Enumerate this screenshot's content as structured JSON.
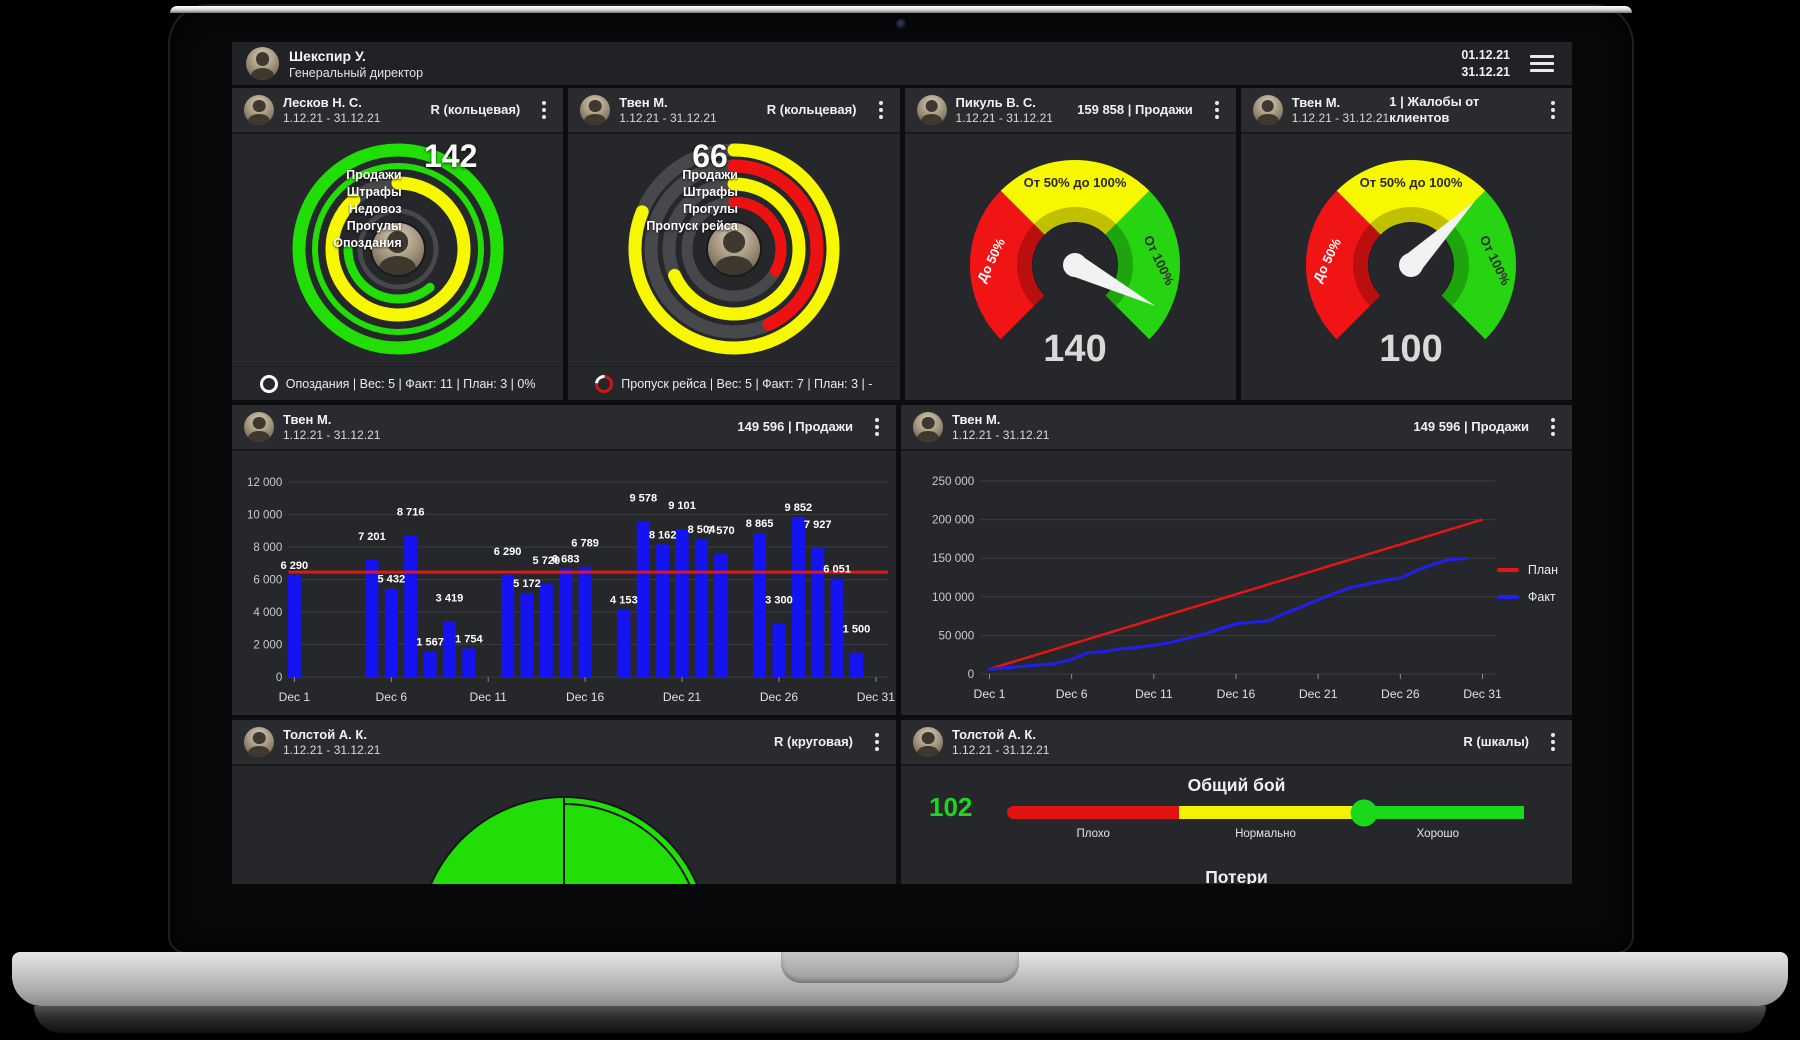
{
  "colors": {
    "green": "#21DF06",
    "yellow": "#F7F700",
    "red": "#EE1111",
    "gauge_red": "#F01414",
    "gauge_yellow": "#F7F700",
    "gauge_green": "#27D411",
    "bar_blue": "#1414F2",
    "plan_red": "#E11616",
    "fact_blue": "#2020EE",
    "ring_track": "#47484C",
    "scale_red": "#E11212",
    "scale_yellow": "#F3F300",
    "scale_green": "#1AD91A",
    "value_green": "#1FD61F"
  },
  "header": {
    "name": "Шекспир У.",
    "role": "Генеральный директор",
    "date_from": "01.12.21",
    "date_to": "31.12.21"
  },
  "cards": {
    "ring1": {
      "name": "Лесков Н. С.",
      "period": "1.12.21 - 31.12.21",
      "mode": "R (кольцевая)",
      "value": "142",
      "legend": [
        "Продажи",
        "Штрафы",
        "Недовоз",
        "Прогулы",
        "Опоздания"
      ],
      "footer": "Опоздания | Вес: 5 | Факт: 11 | План: 3 | 0%",
      "rings": [
        {
          "color": "#21DF06",
          "r": 99,
          "w": 13,
          "start": 0,
          "sweep": 360
        },
        {
          "color": "#21DF06",
          "r": 83,
          "w": 6,
          "start": 0,
          "sweep": 360
        },
        {
          "color": "#F7F700",
          "r": 66,
          "w": 13,
          "start": 0,
          "sweep": 318,
          "track": "#47484C"
        },
        {
          "color": "#21DF06",
          "r": 50,
          "w": 9,
          "start": 140,
          "sweep": 130
        },
        {
          "color": "#47484C",
          "r": 38,
          "w": 5,
          "start": 0,
          "sweep": 0,
          "track": "#47484C"
        }
      ]
    },
    "ring2": {
      "name": "Твен М.",
      "period": "1.12.21 - 31.12.21",
      "mode": "R (кольцевая)",
      "value": "66",
      "legend": [
        "Продажи",
        "Штрафы",
        "Прогулы",
        "Пропуск рейса"
      ],
      "footer": "Пропуск рейса | Вес: 5 | Факт: 7 | План: 3 | -",
      "rings": [
        {
          "color": "#F7F700",
          "r": 99,
          "w": 13,
          "start": 0,
          "sweep": 292,
          "track": "#47484C"
        },
        {
          "color": "#EE1111",
          "r": 83,
          "w": 13,
          "start": 0,
          "sweep": 155,
          "track": "#47484C"
        },
        {
          "color": "#F7F700",
          "r": 65,
          "w": 13,
          "start": 0,
          "sweep": 246,
          "track": "#47484C"
        },
        {
          "color": "#EE1111",
          "r": 47,
          "w": 11,
          "start": 0,
          "sweep": 118,
          "track": "#47484C"
        }
      ]
    },
    "gauge1": {
      "name": "Пикуль В. С.",
      "period": "1.12.21 - 31.12.21",
      "metric": "159 858 | Продажи",
      "value": 140,
      "display": "140",
      "label_low": "До 50%",
      "label_mid": "От 50% до 100%",
      "label_high": "От 100%"
    },
    "gauge2": {
      "name": "Твен М.",
      "period": "1.12.21 - 31.12.21",
      "metric": "1 | Жалобы от клиентов",
      "value": 100,
      "display": "100",
      "label_low": "До 50%",
      "label_mid": "От 50% до 100%",
      "label_high": "От 100%"
    },
    "bar": {
      "name": "Твен М.",
      "period": "1.12.21 - 31.12.21",
      "metric": "149 596 | Продажи"
    },
    "line": {
      "name": "Твен М.",
      "period": "1.12.21 - 31.12.21",
      "metric": "149 596 | Продажи",
      "legend": [
        "План",
        "Факт"
      ]
    },
    "pie": {
      "name": "Толстой А. К.",
      "period": "1.12.21 - 31.12.21",
      "mode": "R (круговая)"
    },
    "scale": {
      "name": "Толстой А. К.",
      "period": "1.12.21 - 31.12.21",
      "mode": "R (шкалы)",
      "scale1": {
        "title": "Общий бой",
        "value": "102",
        "labels": [
          "Плохо",
          "Нормально",
          "Хорошо"
        ],
        "knob_pct": 69
      },
      "scale2": {
        "title": "Потери"
      }
    }
  },
  "chart_data": [
    {
      "type": "bar",
      "ylim": [
        0,
        12000
      ],
      "ytick_step": 2000,
      "plan_value": 6452,
      "grid": true,
      "xticks": [
        {
          "d": 1,
          "label": "Dec 1"
        },
        {
          "d": 6,
          "label": "Dec 6"
        },
        {
          "d": 11,
          "label": "Dec 11"
        },
        {
          "d": 16,
          "label": "Dec 16"
        },
        {
          "d": 21,
          "label": "Dec 21"
        },
        {
          "d": 26,
          "label": "Dec 26"
        },
        {
          "d": 31,
          "label": "Dec 31"
        }
      ],
      "points": [
        {
          "d": 1,
          "v": 6290
        },
        {
          "d": 5,
          "v": 7201
        },
        {
          "d": 6,
          "v": 5432
        },
        {
          "d": 7,
          "v": 8716
        },
        {
          "d": 8,
          "v": 1567
        },
        {
          "d": 9,
          "v": 3419
        },
        {
          "d": 10,
          "v": 1754
        },
        {
          "d": 12,
          "v": 6290
        },
        {
          "d": 13,
          "v": 5172
        },
        {
          "d": 14,
          "v": 5720
        },
        {
          "d": 15,
          "v": 6683
        },
        {
          "d": 16,
          "v": 6789
        },
        {
          "d": 18,
          "v": 4153
        },
        {
          "d": 19,
          "v": 9578
        },
        {
          "d": 20,
          "v": 8162
        },
        {
          "d": 21,
          "v": 9101
        },
        {
          "d": 22,
          "v": 8504
        },
        {
          "d": 23,
          "v": 7570
        },
        {
          "d": 25,
          "v": 8865
        },
        {
          "d": 26,
          "v": 3300
        },
        {
          "d": 27,
          "v": 9852
        },
        {
          "d": 28,
          "v": 7927
        },
        {
          "d": 29,
          "v": 6051
        },
        {
          "d": 30,
          "v": 1500
        }
      ]
    },
    {
      "type": "line",
      "ylim": [
        0,
        250000
      ],
      "ytick_step": 50000,
      "grid": true,
      "legend_position": "right",
      "xticks": [
        {
          "d": 1,
          "label": "Dec 1"
        },
        {
          "d": 6,
          "label": "Dec 6"
        },
        {
          "d": 11,
          "label": "Dec 11"
        },
        {
          "d": 16,
          "label": "Dec 16"
        },
        {
          "d": 21,
          "label": "Dec 21"
        },
        {
          "d": 26,
          "label": "Dec 26"
        },
        {
          "d": 31,
          "label": "Dec 31"
        }
      ],
      "series": [
        {
          "name": "План",
          "x": [
            1,
            31
          ],
          "y": [
            6452,
            200000
          ]
        },
        {
          "name": "Факт",
          "points": [
            {
              "d": 1,
              "v": 6290
            },
            {
              "d": 5,
              "v": 13491
            },
            {
              "d": 6,
              "v": 18923
            },
            {
              "d": 7,
              "v": 27639
            },
            {
              "d": 8,
              "v": 29206
            },
            {
              "d": 9,
              "v": 32625
            },
            {
              "d": 10,
              "v": 34379
            },
            {
              "d": 12,
              "v": 40669
            },
            {
              "d": 13,
              "v": 45841
            },
            {
              "d": 14,
              "v": 51561
            },
            {
              "d": 15,
              "v": 58244
            },
            {
              "d": 16,
              "v": 65033
            },
            {
              "d": 18,
              "v": 69186
            },
            {
              "d": 19,
              "v": 78764
            },
            {
              "d": 20,
              "v": 86926
            },
            {
              "d": 21,
              "v": 96027
            },
            {
              "d": 22,
              "v": 104531
            },
            {
              "d": 23,
              "v": 112101
            },
            {
              "d": 25,
              "v": 120966
            },
            {
              "d": 26,
              "v": 124266
            },
            {
              "d": 27,
              "v": 134118
            },
            {
              "d": 28,
              "v": 142045
            },
            {
              "d": 29,
              "v": 148096
            },
            {
              "d": 30,
              "v": 149596
            }
          ]
        }
      ]
    }
  ]
}
